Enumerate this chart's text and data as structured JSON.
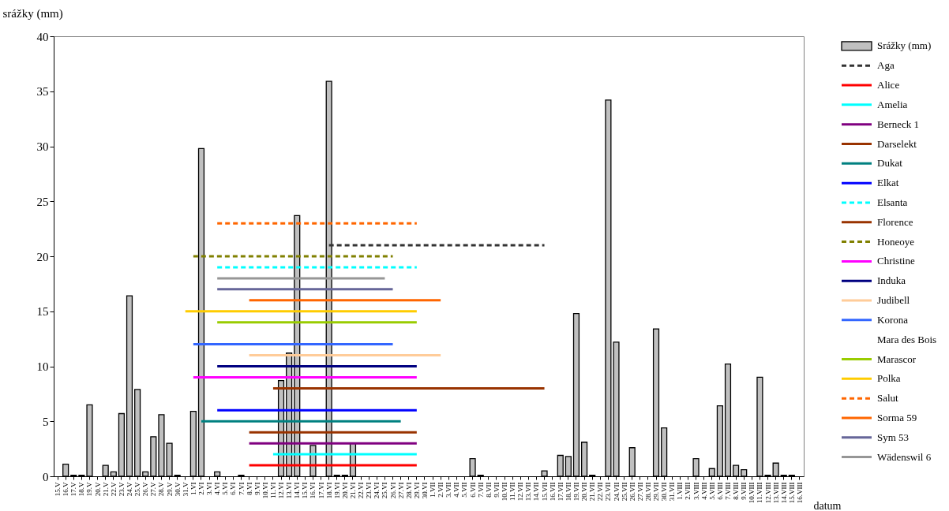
{
  "chart_data": {
    "type": "bar",
    "ylabel": "srážky (mm)",
    "xlabel": "datum",
    "categories": [
      "15.V",
      "16.V",
      "17.V",
      "18.V",
      "19.V",
      "20.V",
      "21.V",
      "22.V",
      "23.V",
      "24.V",
      "25.V",
      "26.V",
      "27.V",
      "28.V",
      "29.V",
      "30.V",
      "31.V",
      "1.VI",
      "2.VI",
      "3.VI",
      "4.VI",
      "5.VI",
      "6.VI",
      "7.VI",
      "8.VI",
      "9.VI",
      "10.VI",
      "11.VI",
      "12.VI",
      "13.VI",
      "14.VI",
      "15.VI",
      "16.VI",
      "17.VI",
      "18.VI",
      "19.VI",
      "20.VI",
      "21.VI",
      "22.VI",
      "23.VI",
      "24.VI",
      "25.VI",
      "26.VI",
      "27.VI",
      "28.VI",
      "29.VI",
      "30.VI",
      "1.VII",
      "2.VII",
      "3.VII",
      "4.VII",
      "5.VII",
      "6.VII",
      "7.VII",
      "8.VII",
      "9.VII",
      "10.VII",
      "11.VII",
      "12.VII",
      "13.VII",
      "14.VII",
      "15.VII",
      "16.VII",
      "17.VII",
      "18.VII",
      "19.VII",
      "20.VII",
      "21.VII",
      "22.VII",
      "23.VII",
      "24.VII",
      "25.VII",
      "26.VII",
      "27.VII",
      "28.VII",
      "29.VII",
      "30.VII",
      "31.VII",
      "1.VIII",
      "2.VIII",
      "3.VIII",
      "4.VIII",
      "5.VIII",
      "6.VIII",
      "7.VIII",
      "8.VIII",
      "9.VIII",
      "10.VIII",
      "11.VIII",
      "12.VIII",
      "13.VIII",
      "14.VIII",
      "15.VIII",
      "16.VIII"
    ],
    "series": [
      {
        "name": "Srážky (mm)",
        "color": "#c0c0c0",
        "values": [
          null,
          1.1,
          0.1,
          0.1,
          6.5,
          null,
          1.0,
          0.4,
          5.7,
          16.4,
          7.9,
          0.4,
          3.6,
          5.6,
          3.0,
          0.1,
          null,
          5.9,
          29.8,
          null,
          0.4,
          null,
          null,
          0.1,
          null,
          null,
          null,
          null,
          8.7,
          11.2,
          23.7,
          null,
          2.8,
          null,
          35.9,
          0.1,
          0.1,
          3.0,
          null,
          null,
          null,
          null,
          null,
          null,
          null,
          null,
          null,
          null,
          null,
          null,
          null,
          null,
          1.6,
          0.1,
          null,
          null,
          null,
          null,
          null,
          null,
          null,
          0.5,
          null,
          1.9,
          1.8,
          14.8,
          3.1,
          0.1,
          null,
          34.2,
          12.2,
          null,
          2.6,
          null,
          null,
          13.4,
          4.4,
          null,
          null,
          null,
          1.6,
          null,
          0.7,
          6.4,
          10.2,
          1.0,
          0.6,
          null,
          9.0,
          0.1,
          1.2,
          0.1,
          0.1,
          null
        ]
      },
      {
        "name": "Aga",
        "type": "line",
        "line_style": "dashed",
        "color": "#333333",
        "x": [
          "18.VI",
          "15.VII"
        ],
        "values": [
          21,
          21
        ]
      },
      {
        "name": "Alice",
        "type": "line",
        "color": "#ff0000",
        "x": [
          "8.VI",
          "29.VI"
        ],
        "values": [
          1,
          1
        ]
      },
      {
        "name": "Amelia",
        "type": "line",
        "color": "#00ffff",
        "x": [
          "11.VI",
          "29.VI"
        ],
        "values": [
          2,
          2
        ]
      },
      {
        "name": "Berneck 1",
        "type": "line",
        "color": "#800080",
        "x": [
          "8.VI",
          "29.VI"
        ],
        "values": [
          3,
          3
        ]
      },
      {
        "name": "Darselekt",
        "type": "line",
        "color": "#993300",
        "x": [
          "8.VI",
          "29.VI"
        ],
        "values": [
          4,
          4
        ]
      },
      {
        "name": "Dukat",
        "type": "line",
        "color": "#008080",
        "x": [
          "2.VI",
          "27.VI"
        ],
        "values": [
          5,
          5
        ]
      },
      {
        "name": "Elkat",
        "type": "line",
        "color": "#0000ff",
        "x": [
          "4.VI",
          "29.VI"
        ],
        "values": [
          6,
          6
        ]
      },
      {
        "name": "Elsanta",
        "type": "line",
        "line_style": "dashed",
        "color": "#00ffff",
        "x": [
          "4.VI",
          "29.VI"
        ],
        "values": [
          19,
          19
        ]
      },
      {
        "name": "Florence",
        "type": "line",
        "color": "#993300",
        "x": [
          "11.VI",
          "15.VII"
        ],
        "values": [
          8,
          8
        ]
      },
      {
        "name": "Honeoye",
        "type": "line",
        "line_style": "dashed",
        "color": "#808000",
        "x": [
          "1.VI",
          "26.VI"
        ],
        "values": [
          20,
          20
        ]
      },
      {
        "name": "Christine",
        "type": "line",
        "color": "#ff00ff",
        "x": [
          "1.VI",
          "29.VI"
        ],
        "values": [
          9,
          9
        ]
      },
      {
        "name": "Induka",
        "type": "line",
        "color": "#000080",
        "x": [
          "4.VI",
          "29.VI"
        ],
        "values": [
          10,
          10
        ]
      },
      {
        "name": "Judibell",
        "type": "line",
        "color": "#ffcc99",
        "x": [
          "8.VI",
          "2.VII"
        ],
        "values": [
          11,
          11
        ]
      },
      {
        "name": "Korona",
        "type": "line",
        "color": "#3366ff",
        "x": [
          "1.VI",
          "26.VI"
        ],
        "values": [
          12,
          12
        ]
      },
      {
        "name": "Mara des Bois",
        "type": "line",
        "values": [
          null,
          null,
          null,
          null,
          null,
          null,
          null,
          null,
          null,
          null,
          null,
          null,
          null,
          null,
          null,
          null,
          null,
          null,
          null,
          null,
          null,
          null,
          null,
          null,
          null,
          null,
          null,
          null,
          null,
          null,
          null,
          null,
          null,
          null,
          null,
          null,
          null,
          null,
          null,
          null,
          null,
          null,
          null,
          null,
          null,
          null,
          null,
          null,
          null,
          null,
          null,
          null,
          null,
          null,
          null,
          null,
          null,
          null,
          null,
          null,
          null,
          null,
          null,
          null,
          null,
          null,
          null,
          null,
          null,
          null,
          null,
          null,
          null,
          null,
          null,
          null,
          null,
          null,
          null,
          null,
          null,
          null,
          null,
          null,
          null,
          null,
          null,
          null,
          null,
          null,
          null,
          null,
          null,
          null
        ]
      },
      {
        "name": "Marascor",
        "type": "line",
        "color": "#99cc00",
        "x": [
          "4.VI",
          "29.VI"
        ],
        "values": [
          14,
          14
        ]
      },
      {
        "name": "Polka",
        "type": "line",
        "color": "#ffcc00",
        "x": [
          "31.V",
          "29.VI"
        ],
        "values": [
          15,
          15
        ]
      },
      {
        "name": "Salut",
        "type": "line",
        "line_style": "dashed",
        "color": "#ff6600",
        "x": [
          "4.VI",
          "29.VI"
        ],
        "values": [
          23,
          23
        ]
      },
      {
        "name": "Sorma 59",
        "type": "line",
        "color": "#ff6600",
        "x": [
          "8.VI",
          "2.VII"
        ],
        "values": [
          16,
          16
        ]
      },
      {
        "name": "Sym 53",
        "type": "line",
        "color": "#666699",
        "x": [
          "4.VI",
          "26.VI"
        ],
        "values": [
          17,
          17
        ]
      },
      {
        "name": "Wädenswil 6",
        "type": "line",
        "color": "#969696",
        "x": [
          "4.VI",
          "25.VI"
        ],
        "values": [
          18,
          18
        ]
      }
    ],
    "ylim": [
      0,
      40
    ],
    "yticks": [
      0,
      5,
      10,
      15,
      20,
      25,
      30,
      35,
      40
    ],
    "grid": false,
    "legend": "right"
  }
}
